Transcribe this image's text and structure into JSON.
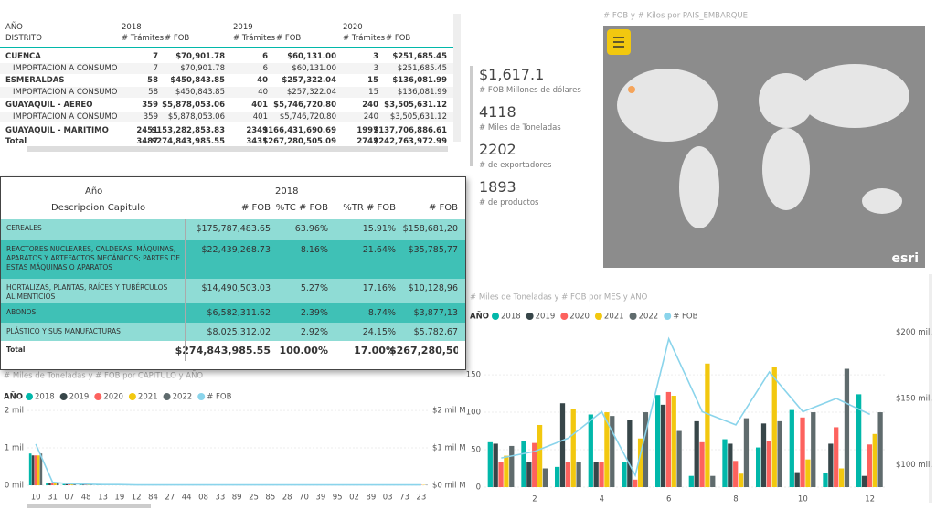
{
  "table1": {
    "header": {
      "row_label": "AÑO",
      "col_label": "DISTRITO",
      "years": [
        "2018",
        "2019",
        "2020"
      ],
      "measures": [
        "# Trámites",
        "# FOB"
      ]
    },
    "rows": [
      [
        "CUENCA",
        "7",
        "$70,901.78",
        "6",
        "$60,131.00",
        "3",
        "$251,685.45"
      ],
      [
        "IMPORTACION A CONSUMO",
        "7",
        "$70,901.78",
        "6",
        "$60,131.00",
        "3",
        "$251,685.45"
      ],
      [
        "ESMERALDAS",
        "58",
        "$450,843.85",
        "40",
        "$257,322.04",
        "15",
        "$136,081.99"
      ],
      [
        "IMPORTACION A CONSUMO",
        "58",
        "$450,843.85",
        "40",
        "$257,322.04",
        "15",
        "$136,081.99"
      ],
      [
        "GUAYAQUIL - AEREO",
        "359",
        "$5,878,053.06",
        "401",
        "$5,746,720.80",
        "240",
        "$3,505,631.12"
      ],
      [
        "IMPORTACION A CONSUMO",
        "359",
        "$5,878,053.06",
        "401",
        "$5,746,720.80",
        "240",
        "$3,505,631.12"
      ],
      [
        "GUAYAQUIL - MARITIMO",
        "2451",
        "$153,282,853.83",
        "2349",
        "$166,431,690.69",
        "1997",
        "$137,706,886.61"
      ],
      [
        "Total",
        "3487",
        "$274,843,985.55",
        "3431",
        "$267,280,505.09",
        "2742",
        "$242,763,972.99"
      ]
    ]
  },
  "table2": {
    "header": {
      "year_label": "Año",
      "year": "2018",
      "row_label": "Descripcion Capitulo",
      "columns": [
        "# FOB",
        "%TC # FOB",
        "%TR # FOB",
        "# FOB"
      ]
    },
    "rows": [
      [
        "CEREALES",
        "$175,787,483.65",
        "63.96%",
        "15.91%",
        "$158,681,20"
      ],
      [
        "REACTORES NUCLEARES, CALDERAS, MÁQUINAS, APARATOS Y ARTEFACTOS MECÁNICOS; PARTES DE ESTAS MÁQUINAS O APARATOS",
        "$22,439,268.73",
        "8.16%",
        "21.64%",
        "$35,785,77"
      ],
      [
        "HORTALIZAS, PLANTAS, RAÍCES Y TUBÉRCULOS ALIMENTICIOS",
        "$14,490,503.03",
        "5.27%",
        "17.16%",
        "$10,128,96"
      ],
      [
        "ABONOS",
        "$6,582,311.62",
        "2.39%",
        "8.74%",
        "$3,877,13"
      ],
      [
        "PLÁSTICO Y SUS MANUFACTURAS",
        "$8,025,312.02",
        "2.92%",
        "24.15%",
        "$5,782,67"
      ],
      [
        "Total",
        "$274,843,985.55",
        "100.00%",
        "17.00%",
        "$267,280,505"
      ]
    ]
  },
  "kpis": [
    {
      "value": "$1,617.1",
      "label": "# FOB Millones de dólares"
    },
    {
      "value": "4118",
      "label": "# Miles de Toneladas"
    },
    {
      "value": "2202",
      "label": "# de exportadores"
    },
    {
      "value": "1893",
      "label": "# de productos"
    }
  ],
  "map": {
    "title": "# FOB y # Kilos por PAIS_EMBARQUE",
    "logo": "esri"
  },
  "chart_data": [
    {
      "type": "bar",
      "title": "# Miles de Toneladas y # FOB por CAPITULO y AÑO",
      "legend_title": "AÑO",
      "categories": [
        "10",
        "31",
        "07",
        "48",
        "13",
        "19",
        "12",
        "84",
        "27",
        "44",
        "08",
        "33",
        "89",
        "25",
        "85",
        "28",
        "70",
        "39",
        "95",
        "02",
        "89",
        "03",
        "73",
        "23"
      ],
      "series": [
        {
          "name": "2018",
          "color": "#01B8AA",
          "values": [
            0.85,
            0.06,
            0.03,
            0.02,
            0.02,
            0.02,
            0.01,
            0.01,
            0.01,
            0.01,
            0.01,
            0.01,
            0.01,
            0.01,
            0.01,
            0.01,
            0.01,
            0.01,
            0.01,
            0.01,
            0.01,
            0.01,
            0.01,
            0.01
          ]
        },
        {
          "name": "2019",
          "color": "#374649",
          "values": [
            0.8,
            0.05,
            0.03,
            0.02,
            0.02,
            0.02,
            0.01,
            0.01,
            0.01,
            0.01,
            0.01,
            0.01,
            0.01,
            0.01,
            0.01,
            0.01,
            0.01,
            0.01,
            0.01,
            0.01,
            0.01,
            0.01,
            0.01,
            0.01
          ]
        },
        {
          "name": "2020",
          "color": "#FD625E",
          "values": [
            0.8,
            0.05,
            0.03,
            0.02,
            0.02,
            0.01,
            0.01,
            0.01,
            0.01,
            0.01,
            0.01,
            0.01,
            0.01,
            0.01,
            0.01,
            0.01,
            0.01,
            0.01,
            0.01,
            0.01,
            0.01,
            0.01,
            0.01,
            0.01
          ]
        },
        {
          "name": "2021",
          "color": "#F2C80F",
          "values": [
            0.8,
            0.06,
            0.03,
            0.02,
            0.02,
            0.02,
            0.01,
            0.01,
            0.01,
            0.01,
            0.01,
            0.01,
            0.01,
            0.01,
            0.01,
            0.01,
            0.01,
            0.01,
            0.01,
            0.01,
            0.01,
            0.01,
            0.01,
            0.01
          ]
        },
        {
          "name": "2022",
          "color": "#5F6B6D",
          "values": [
            0.85,
            0.05,
            0.03,
            0.02,
            0.02,
            0.02,
            0.01,
            0.01,
            0.01,
            0.01,
            0.01,
            0.01,
            0.01,
            0.01,
            0.01,
            0.01,
            0.01,
            0.01,
            0.01,
            0.01,
            0.01,
            0.01,
            0.01,
            0.01
          ]
        },
        {
          "name": "# FOB",
          "color": "#8AD4EB",
          "type": "line",
          "axis": "y2",
          "values": [
            1.1,
            0.08,
            0.04,
            0.03,
            0.02,
            0.02,
            0.01,
            0.01,
            0.01,
            0.01,
            0.01,
            0.01,
            0.01,
            0.01,
            0.01,
            0.01,
            0.01,
            0.01,
            0.01,
            0.01,
            0.01,
            0.01,
            0.01,
            0.01
          ]
        }
      ],
      "ylim": [
        0,
        2.1
      ],
      "yticks": [
        {
          "value": 0,
          "label": "0 mil"
        },
        {
          "value": 1,
          "label": "1 mil"
        },
        {
          "value": 2,
          "label": "2 mil"
        }
      ],
      "y2lim": [
        0,
        2.1
      ],
      "y2ticks": [
        {
          "value": 0,
          "label": "$0 mil M"
        },
        {
          "value": 1,
          "label": "$1 mil M"
        },
        {
          "value": 2,
          "label": "$2 mil M"
        }
      ]
    },
    {
      "type": "bar",
      "title": "# Miles de Toneladas y # FOB por MES y AÑO",
      "legend_title": "AÑO",
      "categories": [
        null,
        "2",
        null,
        "4",
        null,
        "6",
        null,
        "8",
        null,
        "10",
        null,
        "12"
      ],
      "series": [
        {
          "name": "2018",
          "color": "#01B8AA",
          "values": [
            60,
            62,
            27,
            97,
            33,
            123,
            15,
            64,
            53,
            103,
            19,
            124
          ]
        },
        {
          "name": "2019",
          "color": "#374649",
          "values": [
            58,
            33,
            112,
            33,
            90,
            110,
            88,
            58,
            85,
            20,
            58,
            15
          ]
        },
        {
          "name": "2020",
          "color": "#FD625E",
          "values": [
            33,
            59,
            34,
            33,
            10,
            127,
            60,
            35,
            62,
            93,
            80,
            57
          ]
        },
        {
          "name": "2021",
          "color": "#F2C80F",
          "values": [
            42,
            83,
            104,
            100,
            65,
            122,
            165,
            18,
            161,
            37,
            25,
            71
          ]
        },
        {
          "name": "2022",
          "color": "#5F6B6D",
          "values": [
            55,
            25,
            33,
            95,
            100,
            75,
            15,
            92,
            88,
            100,
            158,
            100
          ]
        },
        {
          "name": "# FOB",
          "color": "#8AD4EB",
          "type": "line",
          "axis": "y2",
          "values": [
            105,
            110,
            120,
            140,
            92,
            195,
            140,
            130,
            170,
            140,
            150,
            138
          ]
        }
      ],
      "ylim": [
        0,
        205
      ],
      "yticks": [
        0,
        50,
        100,
        150
      ],
      "y2lim": [
        83,
        199
      ],
      "y2ticks": [
        {
          "value": 100,
          "label": "$100 mil."
        },
        {
          "value": 150,
          "label": "$150 mil."
        },
        {
          "value": 200,
          "label": "$200 mil."
        }
      ]
    }
  ]
}
